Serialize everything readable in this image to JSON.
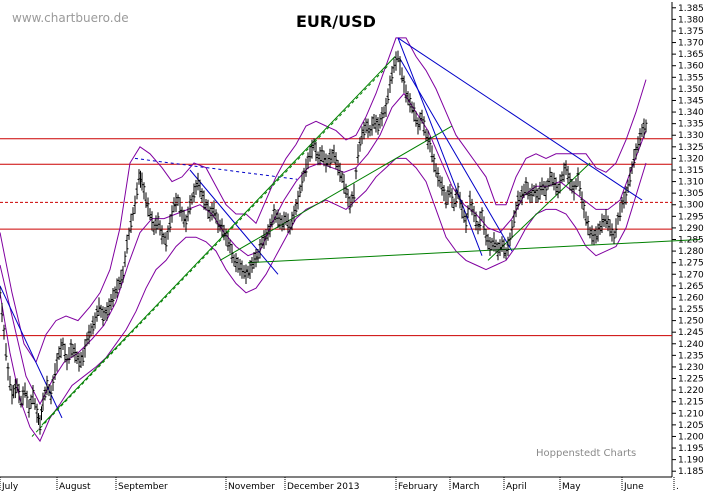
{
  "chart_data": {
    "type": "candlestick-ohlc",
    "title": "EUR/USD",
    "watermark": "www.chartbuero.de",
    "credit": "Hoppenstedt Charts",
    "x_labels": [
      "July",
      "August",
      "September",
      "November",
      "December 2013",
      "February",
      "March",
      "April",
      "May",
      "June",
      "."
    ],
    "y_ticks": [
      1.185,
      1.19,
      1.195,
      1.2,
      1.205,
      1.21,
      1.215,
      1.22,
      1.225,
      1.23,
      1.235,
      1.24,
      1.245,
      1.25,
      1.255,
      1.26,
      1.265,
      1.27,
      1.275,
      1.28,
      1.285,
      1.29,
      1.295,
      1.3,
      1.305,
      1.31,
      1.315,
      1.32,
      1.325,
      1.33,
      1.335,
      1.34,
      1.345,
      1.35,
      1.355,
      1.36,
      1.365,
      1.37,
      1.375,
      1.38,
      1.385
    ],
    "y_tick_labels": [
      "1.185",
      "1.190",
      "1.195",
      "1.200",
      "1.205",
      "1.210",
      "1.215",
      "1.220",
      "1.225",
      "1.230",
      "1.235",
      "1.240",
      "1.245",
      "1.250",
      "1.255",
      "1.260",
      "1.265",
      "1.270",
      "1.275",
      "1.280",
      "1.285",
      "1.290",
      "1.295",
      "1.300",
      "1.305",
      "1.310",
      "1.315",
      "1.320",
      "1.325",
      "1.330",
      "1.335",
      "1.340",
      "1.345",
      "1.350",
      "1.355",
      "1.360",
      "1.365",
      "1.370",
      "1.375",
      "1.380",
      "1.385"
    ],
    "ylim": [
      1.1825,
      1.3875
    ],
    "horizontal_levels": [
      {
        "value": 1.3285,
        "style": "solid"
      },
      {
        "value": 1.3175,
        "style": "solid"
      },
      {
        "value": 1.301,
        "style": "dashed"
      },
      {
        "value": 1.2895,
        "style": "solid"
      },
      {
        "value": 1.2435,
        "style": "solid"
      }
    ],
    "colors": {
      "price": "#000000",
      "band": "#8000a0",
      "trend_down": "#0000c8",
      "trend_up": "#008000",
      "level": "#cc0000",
      "grid": "#000000"
    },
    "price_path": [
      [
        0,
        1.262
      ],
      [
        4,
        1.245
      ],
      [
        8,
        1.228
      ],
      [
        12,
        1.218
      ],
      [
        17,
        1.222
      ],
      [
        21,
        1.215
      ],
      [
        25,
        1.22
      ],
      [
        29,
        1.212
      ],
      [
        33,
        1.218
      ],
      [
        37,
        1.21
      ],
      [
        40,
        1.205
      ],
      [
        43,
        1.215
      ],
      [
        47,
        1.222
      ],
      [
        51,
        1.218
      ],
      [
        55,
        1.228
      ],
      [
        59,
        1.236
      ],
      [
        63,
        1.24
      ],
      [
        67,
        1.232
      ],
      [
        71,
        1.238
      ],
      [
        75,
        1.236
      ],
      [
        79,
        1.232
      ],
      [
        83,
        1.234
      ],
      [
        87,
        1.242
      ],
      [
        91,
        1.246
      ],
      [
        95,
        1.25
      ],
      [
        99,
        1.256
      ],
      [
        103,
        1.252
      ],
      [
        107,
        1.254
      ],
      [
        111,
        1.258
      ],
      [
        115,
        1.262
      ],
      [
        119,
        1.266
      ],
      [
        123,
        1.27
      ],
      [
        127,
        1.283
      ],
      [
        131,
        1.292
      ],
      [
        135,
        1.3
      ],
      [
        139,
        1.312
      ],
      [
        142,
        1.31
      ],
      [
        146,
        1.302
      ],
      [
        150,
        1.296
      ],
      [
        154,
        1.29
      ],
      [
        158,
        1.293
      ],
      [
        162,
        1.287
      ],
      [
        166,
        1.284
      ],
      [
        170,
        1.292
      ],
      [
        174,
        1.3
      ],
      [
        178,
        1.302
      ],
      [
        182,
        1.296
      ],
      [
        186,
        1.292
      ],
      [
        190,
        1.3
      ],
      [
        194,
        1.305
      ],
      [
        198,
        1.31
      ],
      [
        202,
        1.304
      ],
      [
        206,
        1.3
      ],
      [
        210,
        1.296
      ],
      [
        214,
        1.298
      ],
      [
        218,
        1.292
      ],
      [
        222,
        1.29
      ],
      [
        226,
        1.286
      ],
      [
        230,
        1.282
      ],
      [
        234,
        1.276
      ],
      [
        238,
        1.274
      ],
      [
        242,
        1.272
      ],
      [
        246,
        1.27
      ],
      [
        250,
        1.272
      ],
      [
        254,
        1.276
      ],
      [
        258,
        1.278
      ],
      [
        262,
        1.284
      ],
      [
        266,
        1.286
      ],
      [
        270,
        1.29
      ],
      [
        274,
        1.296
      ],
      [
        278,
        1.294
      ],
      [
        282,
        1.292
      ],
      [
        286,
        1.294
      ],
      [
        290,
        1.29
      ],
      [
        294,
        1.296
      ],
      [
        298,
        1.302
      ],
      [
        302,
        1.31
      ],
      [
        306,
        1.316
      ],
      [
        310,
        1.322
      ],
      [
        314,
        1.326
      ],
      [
        318,
        1.32
      ],
      [
        322,
        1.322
      ],
      [
        326,
        1.318
      ],
      [
        330,
        1.32
      ],
      [
        334,
        1.322
      ],
      [
        338,
        1.316
      ],
      [
        342,
        1.312
      ],
      [
        346,
        1.306
      ],
      [
        350,
        1.3
      ],
      [
        354,
        1.305
      ],
      [
        358,
        1.322
      ],
      [
        362,
        1.33
      ],
      [
        366,
        1.334
      ],
      [
        370,
        1.332
      ],
      [
        374,
        1.336
      ],
      [
        378,
        1.334
      ],
      [
        382,
        1.338
      ],
      [
        386,
        1.342
      ],
      [
        390,
        1.352
      ],
      [
        394,
        1.36
      ],
      [
        398,
        1.364
      ],
      [
        402,
        1.356
      ],
      [
        406,
        1.348
      ],
      [
        410,
        1.344
      ],
      [
        414,
        1.34
      ],
      [
        418,
        1.334
      ],
      [
        422,
        1.338
      ],
      [
        426,
        1.33
      ],
      [
        430,
        1.326
      ],
      [
        434,
        1.318
      ],
      [
        438,
        1.312
      ],
      [
        442,
        1.308
      ],
      [
        446,
        1.302
      ],
      [
        450,
        1.306
      ],
      [
        454,
        1.3
      ],
      [
        458,
        1.306
      ],
      [
        462,
        1.298
      ],
      [
        466,
        1.292
      ],
      [
        470,
        1.302
      ],
      [
        474,
        1.296
      ],
      [
        478,
        1.29
      ],
      [
        482,
        1.296
      ],
      [
        486,
        1.286
      ],
      [
        490,
        1.282
      ],
      [
        494,
        1.284
      ],
      [
        498,
        1.28
      ],
      [
        502,
        1.283
      ],
      [
        506,
        1.279
      ],
      [
        510,
        1.285
      ],
      [
        514,
        1.294
      ],
      [
        518,
        1.302
      ],
      [
        522,
        1.304
      ],
      [
        526,
        1.308
      ],
      [
        530,
        1.304
      ],
      [
        534,
        1.306
      ],
      [
        538,
        1.304
      ],
      [
        542,
        1.308
      ],
      [
        546,
        1.306
      ],
      [
        550,
        1.312
      ],
      [
        554,
        1.31
      ],
      [
        558,
        1.306
      ],
      [
        562,
        1.312
      ],
      [
        566,
        1.316
      ],
      [
        570,
        1.31
      ],
      [
        574,
        1.306
      ],
      [
        578,
        1.312
      ],
      [
        582,
        1.302
      ],
      [
        586,
        1.294
      ],
      [
        590,
        1.288
      ],
      [
        594,
        1.286
      ],
      [
        598,
        1.288
      ],
      [
        602,
        1.292
      ],
      [
        606,
        1.294
      ],
      [
        610,
        1.29
      ],
      [
        614,
        1.286
      ],
      [
        618,
        1.294
      ],
      [
        622,
        1.3
      ],
      [
        626,
        1.304
      ],
      [
        630,
        1.312
      ],
      [
        634,
        1.32
      ],
      [
        638,
        1.326
      ],
      [
        642,
        1.332
      ],
      [
        646,
        1.334
      ]
    ],
    "band_upper": [
      [
        0,
        1.288
      ],
      [
        12,
        1.262
      ],
      [
        24,
        1.24
      ],
      [
        36,
        1.232
      ],
      [
        46,
        1.244
      ],
      [
        56,
        1.25
      ],
      [
        66,
        1.252
      ],
      [
        78,
        1.25
      ],
      [
        90,
        1.256
      ],
      [
        100,
        1.262
      ],
      [
        110,
        1.272
      ],
      [
        120,
        1.29
      ],
      [
        130,
        1.318
      ],
      [
        140,
        1.325
      ],
      [
        150,
        1.322
      ],
      [
        162,
        1.316
      ],
      [
        172,
        1.31
      ],
      [
        182,
        1.312
      ],
      [
        194,
        1.318
      ],
      [
        206,
        1.316
      ],
      [
        216,
        1.308
      ],
      [
        226,
        1.3
      ],
      [
        236,
        1.296
      ],
      [
        246,
        1.296
      ],
      [
        256,
        1.292
      ],
      [
        266,
        1.302
      ],
      [
        276,
        1.312
      ],
      [
        286,
        1.32
      ],
      [
        296,
        1.326
      ],
      [
        306,
        1.334
      ],
      [
        316,
        1.336
      ],
      [
        326,
        1.334
      ],
      [
        336,
        1.332
      ],
      [
        346,
        1.328
      ],
      [
        356,
        1.33
      ],
      [
        366,
        1.338
      ],
      [
        376,
        1.348
      ],
      [
        386,
        1.36
      ],
      [
        396,
        1.372
      ],
      [
        406,
        1.372
      ],
      [
        416,
        1.364
      ],
      [
        426,
        1.358
      ],
      [
        436,
        1.35
      ],
      [
        446,
        1.34
      ],
      [
        456,
        1.33
      ],
      [
        466,
        1.324
      ],
      [
        476,
        1.318
      ],
      [
        486,
        1.312
      ],
      [
        496,
        1.3
      ],
      [
        506,
        1.3
      ],
      [
        516,
        1.312
      ],
      [
        526,
        1.32
      ],
      [
        536,
        1.322
      ],
      [
        546,
        1.32
      ],
      [
        556,
        1.322
      ],
      [
        566,
        1.322
      ],
      [
        576,
        1.322
      ],
      [
        586,
        1.322
      ],
      [
        596,
        1.316
      ],
      [
        606,
        1.314
      ],
      [
        616,
        1.318
      ],
      [
        626,
        1.328
      ],
      [
        636,
        1.34
      ],
      [
        646,
        1.354
      ]
    ],
    "band_lower": [
      [
        0,
        1.262
      ],
      [
        10,
        1.236
      ],
      [
        20,
        1.216
      ],
      [
        30,
        1.204
      ],
      [
        40,
        1.198
      ],
      [
        50,
        1.208
      ],
      [
        60,
        1.214
      ],
      [
        72,
        1.222
      ],
      [
        84,
        1.226
      ],
      [
        96,
        1.23
      ],
      [
        106,
        1.234
      ],
      [
        116,
        1.24
      ],
      [
        126,
        1.246
      ],
      [
        136,
        1.254
      ],
      [
        146,
        1.264
      ],
      [
        156,
        1.272
      ],
      [
        166,
        1.276
      ],
      [
        176,
        1.282
      ],
      [
        186,
        1.286
      ],
      [
        196,
        1.286
      ],
      [
        206,
        1.284
      ],
      [
        216,
        1.28
      ],
      [
        226,
        1.272
      ],
      [
        236,
        1.266
      ],
      [
        246,
        1.262
      ],
      [
        256,
        1.264
      ],
      [
        266,
        1.27
      ],
      [
        276,
        1.278
      ],
      [
        286,
        1.286
      ],
      [
        296,
        1.294
      ],
      [
        306,
        1.298
      ],
      [
        316,
        1.3
      ],
      [
        326,
        1.302
      ],
      [
        336,
        1.3
      ],
      [
        346,
        1.298
      ],
      [
        356,
        1.302
      ],
      [
        366,
        1.306
      ],
      [
        376,
        1.312
      ],
      [
        386,
        1.316
      ],
      [
        396,
        1.32
      ],
      [
        406,
        1.32
      ],
      [
        416,
        1.316
      ],
      [
        426,
        1.31
      ],
      [
        436,
        1.298
      ],
      [
        446,
        1.286
      ],
      [
        456,
        1.28
      ],
      [
        466,
        1.276
      ],
      [
        476,
        1.274
      ],
      [
        486,
        1.272
      ],
      [
        496,
        1.274
      ],
      [
        506,
        1.276
      ],
      [
        516,
        1.282
      ],
      [
        526,
        1.29
      ],
      [
        536,
        1.296
      ],
      [
        546,
        1.298
      ],
      [
        556,
        1.298
      ],
      [
        566,
        1.296
      ],
      [
        576,
        1.29
      ],
      [
        586,
        1.282
      ],
      [
        596,
        1.278
      ],
      [
        606,
        1.28
      ],
      [
        616,
        1.282
      ],
      [
        626,
        1.29
      ],
      [
        636,
        1.304
      ],
      [
        646,
        1.318
      ]
    ],
    "band_mid": [
      [
        0,
        1.274
      ],
      [
        12,
        1.252
      ],
      [
        26,
        1.226
      ],
      [
        40,
        1.214
      ],
      [
        52,
        1.224
      ],
      [
        64,
        1.232
      ],
      [
        78,
        1.236
      ],
      [
        92,
        1.242
      ],
      [
        104,
        1.248
      ],
      [
        116,
        1.258
      ],
      [
        128,
        1.274
      ],
      [
        140,
        1.288
      ],
      [
        152,
        1.294
      ],
      [
        164,
        1.294
      ],
      [
        176,
        1.296
      ],
      [
        188,
        1.298
      ],
      [
        200,
        1.3
      ],
      [
        212,
        1.296
      ],
      [
        224,
        1.288
      ],
      [
        236,
        1.282
      ],
      [
        248,
        1.278
      ],
      [
        260,
        1.28
      ],
      [
        272,
        1.292
      ],
      [
        284,
        1.302
      ],
      [
        296,
        1.31
      ],
      [
        308,
        1.316
      ],
      [
        320,
        1.318
      ],
      [
        332,
        1.316
      ],
      [
        344,
        1.314
      ],
      [
        356,
        1.316
      ],
      [
        368,
        1.322
      ],
      [
        380,
        1.33
      ],
      [
        392,
        1.342
      ],
      [
        404,
        1.348
      ],
      [
        416,
        1.34
      ],
      [
        428,
        1.332
      ],
      [
        440,
        1.32
      ],
      [
        452,
        1.308
      ],
      [
        464,
        1.3
      ],
      [
        476,
        1.296
      ],
      [
        488,
        1.29
      ],
      [
        500,
        1.288
      ],
      [
        512,
        1.294
      ],
      [
        524,
        1.304
      ],
      [
        536,
        1.308
      ],
      [
        548,
        1.308
      ],
      [
        560,
        1.31
      ],
      [
        572,
        1.306
      ],
      [
        584,
        1.302
      ],
      [
        596,
        1.298
      ],
      [
        608,
        1.298
      ],
      [
        620,
        1.302
      ],
      [
        632,
        1.316
      ],
      [
        646,
        1.332
      ]
    ],
    "trendlines": [
      {
        "kind": "down",
        "points": [
          [
            0,
            1.265
          ],
          [
            62,
            1.208
          ]
        ]
      },
      {
        "kind": "down",
        "points": [
          [
            135,
            1.32
          ],
          [
            297,
            1.311
          ]
        ],
        "dashed": true
      },
      {
        "kind": "down",
        "points": [
          [
            190,
            1.315
          ],
          [
            278,
            1.27
          ]
        ]
      },
      {
        "kind": "down",
        "points": [
          [
            398,
            1.372
          ],
          [
            642,
            1.302
          ]
        ]
      },
      {
        "kind": "down",
        "points": [
          [
            398,
            1.372
          ],
          [
            482,
            1.278
          ]
        ]
      },
      {
        "kind": "down",
        "points": [
          [
            400,
            1.363
          ],
          [
            512,
            1.28
          ]
        ]
      },
      {
        "kind": "up",
        "points": [
          [
            32,
            1.2
          ],
          [
            388,
            1.36
          ]
        ],
        "dashed": true
      },
      {
        "kind": "up",
        "points": [
          [
            42,
            1.205
          ],
          [
            395,
            1.364
          ]
        ]
      },
      {
        "kind": "up",
        "points": [
          [
            220,
            1.276
          ],
          [
            452,
            1.334
          ]
        ]
      },
      {
        "kind": "up",
        "points": [
          [
            248,
            1.275
          ],
          [
            700,
            1.285
          ]
        ]
      },
      {
        "kind": "up",
        "points": [
          [
            488,
            1.276
          ],
          [
            590,
            1.318
          ]
        ]
      }
    ]
  }
}
